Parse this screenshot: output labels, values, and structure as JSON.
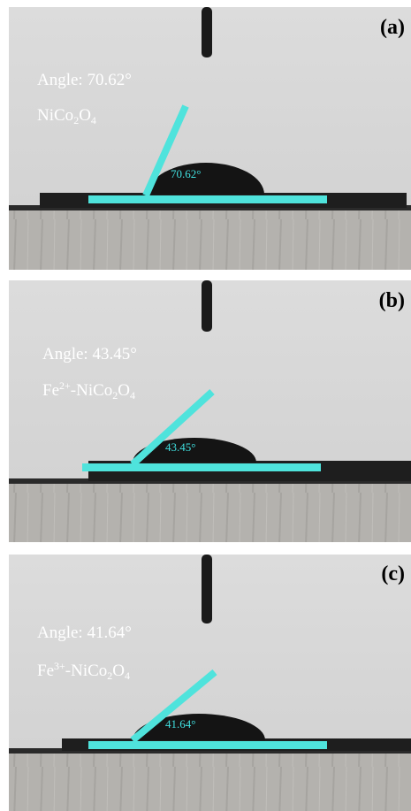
{
  "panels": [
    {
      "label": "(a)",
      "angle_text": "Angle: 70.62°",
      "sample": [
        {
          "text": "NiCo"
        },
        {
          "sub": "2"
        },
        {
          "text": "O"
        },
        {
          "sub": "4"
        }
      ],
      "annotation": "70.62°"
    },
    {
      "label": "(b)",
      "angle_text": "Angle: 43.45°",
      "sample": [
        {
          "text": "Fe"
        },
        {
          "sup": "2+"
        },
        {
          "text": "-NiCo"
        },
        {
          "sub": "2"
        },
        {
          "text": "O"
        },
        {
          "sub": "4"
        }
      ],
      "annotation": "43.45°"
    },
    {
      "label": "(c)",
      "angle_text": "Angle: 41.64°",
      "sample": [
        {
          "text": "Fe"
        },
        {
          "sup": "3+"
        },
        {
          "text": "-NiCo"
        },
        {
          "sub": "2"
        },
        {
          "text": "O"
        },
        {
          "sub": "4"
        }
      ],
      "annotation": "41.64°"
    }
  ]
}
